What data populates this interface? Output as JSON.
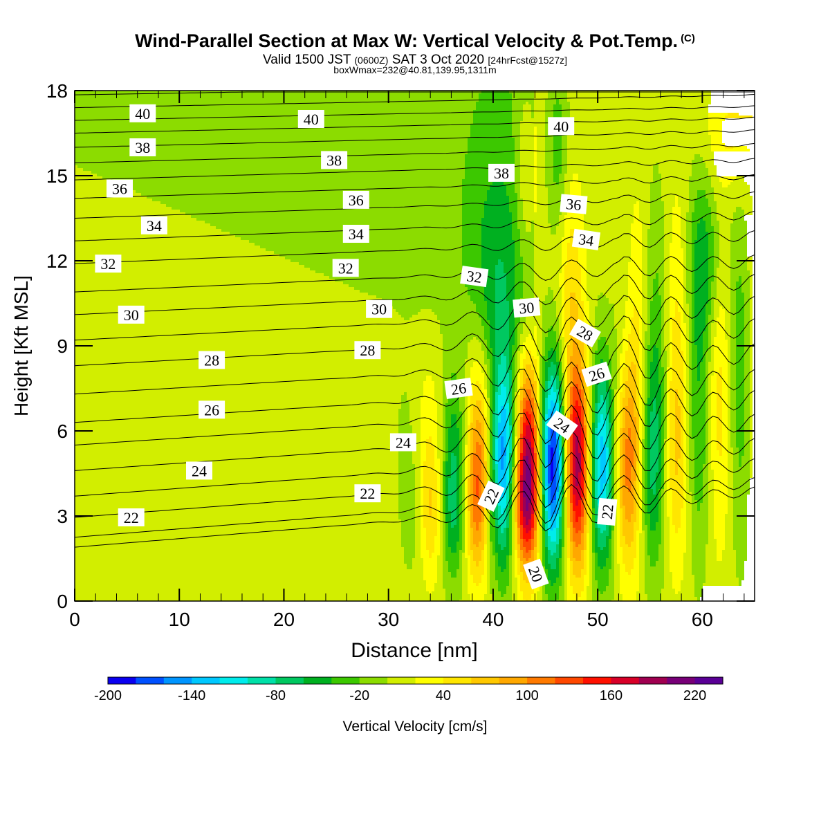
{
  "header": {
    "title": "Wind-Parallel Section at Max W: Vertical Velocity & Pot.Temp.",
    "copyright": "(C)",
    "valid_prefix": "Valid 1500 JST",
    "valid_utc": "(0600Z)",
    "valid_date": "SAT 3 Oct 2020",
    "forecast": "[24hrFcst@1527z]",
    "boxline": "boxWmax=232@40.81,139.95,1311m"
  },
  "chart_data": {
    "type": "heatmap",
    "title": "Wind-Parallel Section at Max W: Vertical Velocity & Pot.Temp.",
    "xlabel": "Distance [nm]",
    "ylabel": "Height [Kft MSL]",
    "xlim": [
      0,
      65
    ],
    "ylim": [
      0,
      18
    ],
    "x_ticks": [
      0,
      10,
      20,
      30,
      40,
      50,
      60
    ],
    "y_ticks": [
      0,
      3,
      6,
      9,
      12,
      15,
      18
    ],
    "colorbar": {
      "label": "Vertical Velocity [cm/s]",
      "tick_labels": [
        "-200",
        "-140",
        "-80",
        "-20",
        "40",
        "100",
        "160",
        "220"
      ],
      "colors": [
        "#0a00f0",
        "#0050ff",
        "#0095ff",
        "#00c8ff",
        "#00ecec",
        "#00e0a8",
        "#00c860",
        "#00b020",
        "#3cc800",
        "#8cdc00",
        "#d2ee00",
        "#ffff00",
        "#ffe600",
        "#ffc800",
        "#ffa800",
        "#ff7a00",
        "#ff4800",
        "#ff1000",
        "#d80028",
        "#a00050",
        "#780078",
        "#5a0096"
      ]
    },
    "series": [
      {
        "name": "vertical velocity",
        "units": "cm/s",
        "max_value": 232,
        "max_location": "40.81,139.95,1311m"
      }
    ],
    "features": {
      "downdraft_cores_nm": [
        41,
        46.5,
        50.5
      ],
      "updraft_cores_nm": [
        43.3,
        48
      ],
      "max_updraft_cm_s": 232,
      "min_downdraft_cm_s": -200
    },
    "contour_labels": [
      {
        "text": "40",
        "x": 6.5,
        "y": 17.2,
        "rot": 0
      },
      {
        "text": "40",
        "x": 22.6,
        "y": 17.0,
        "rot": 0
      },
      {
        "text": "40",
        "x": 46.5,
        "y": 16.75,
        "rot": 0
      },
      {
        "text": "38",
        "x": 6.5,
        "y": 16.0,
        "rot": 0
      },
      {
        "text": "38",
        "x": 24.8,
        "y": 15.55,
        "rot": 0
      },
      {
        "text": "38",
        "x": 40.8,
        "y": 15.1,
        "rot": 0
      },
      {
        "text": "36",
        "x": 4.3,
        "y": 14.55,
        "rot": 0
      },
      {
        "text": "36",
        "x": 26.9,
        "y": 14.15,
        "rot": 0
      },
      {
        "text": "36",
        "x": 47.7,
        "y": 14.0,
        "rot": 5
      },
      {
        "text": "34",
        "x": 7.6,
        "y": 13.25,
        "rot": 0
      },
      {
        "text": "34",
        "x": 26.9,
        "y": 12.95,
        "rot": 0
      },
      {
        "text": "34",
        "x": 48.9,
        "y": 12.75,
        "rot": 8
      },
      {
        "text": "32",
        "x": 3.2,
        "y": 11.9,
        "rot": 0
      },
      {
        "text": "32",
        "x": 25.9,
        "y": 11.75,
        "rot": 0
      },
      {
        "text": "32",
        "x": 38.2,
        "y": 11.45,
        "rot": 8
      },
      {
        "text": "30",
        "x": 5.4,
        "y": 10.1,
        "rot": 0
      },
      {
        "text": "30",
        "x": 29.1,
        "y": 10.3,
        "rot": 0
      },
      {
        "text": "30",
        "x": 43.2,
        "y": 10.35,
        "rot": -5
      },
      {
        "text": "28",
        "x": 13.1,
        "y": 8.5,
        "rot": 0
      },
      {
        "text": "28",
        "x": 28.0,
        "y": 8.85,
        "rot": 0
      },
      {
        "text": "28",
        "x": 48.8,
        "y": 9.45,
        "rot": 30
      },
      {
        "text": "26",
        "x": 13.1,
        "y": 6.75,
        "rot": 0
      },
      {
        "text": "26",
        "x": 36.7,
        "y": 7.5,
        "rot": -8
      },
      {
        "text": "26",
        "x": 49.9,
        "y": 8.0,
        "rot": -18
      },
      {
        "text": "24",
        "x": 11.9,
        "y": 4.6,
        "rot": 0
      },
      {
        "text": "24",
        "x": 31.4,
        "y": 5.6,
        "rot": 0
      },
      {
        "text": "24",
        "x": 46.6,
        "y": 6.2,
        "rot": 35
      },
      {
        "text": "22",
        "x": 5.4,
        "y": 2.95,
        "rot": 0
      },
      {
        "text": "22",
        "x": 28.0,
        "y": 3.8,
        "rot": 0
      },
      {
        "text": "22",
        "x": 39.8,
        "y": 3.7,
        "rot": -65
      },
      {
        "text": "22",
        "x": 50.9,
        "y": 3.15,
        "rot": -85
      },
      {
        "text": "20",
        "x": 44.1,
        "y": 0.95,
        "rot": 70
      }
    ]
  }
}
